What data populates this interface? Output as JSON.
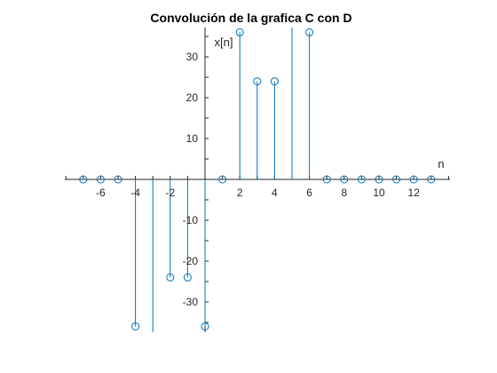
{
  "chart_data": {
    "type": "stem",
    "title": "Convolución de la grafica C con D",
    "xlabel": "n",
    "ylabel": "x[n]",
    "xlim": [
      -8,
      14
    ],
    "ylim": [
      -37,
      37
    ],
    "x_ticks": [
      -6,
      -4,
      -2,
      2,
      4,
      6,
      8,
      10,
      12
    ],
    "y_ticks": [
      30,
      20,
      10,
      -10,
      -20,
      -30
    ],
    "series": [
      {
        "x": [
          -7,
          -6,
          -5,
          -4,
          -3,
          -2,
          -1,
          0,
          1,
          2,
          3,
          4,
          5,
          6,
          7,
          8,
          9,
          10,
          11,
          12,
          13
        ],
        "values": [
          0,
          0,
          0,
          -36,
          -48,
          -24,
          -24,
          -36,
          0,
          36,
          24,
          24,
          48,
          36,
          0,
          0,
          0,
          0,
          0,
          0,
          0
        ]
      }
    ],
    "stem_color": "#0072BD",
    "axis_color": "#262626",
    "grid": false
  }
}
